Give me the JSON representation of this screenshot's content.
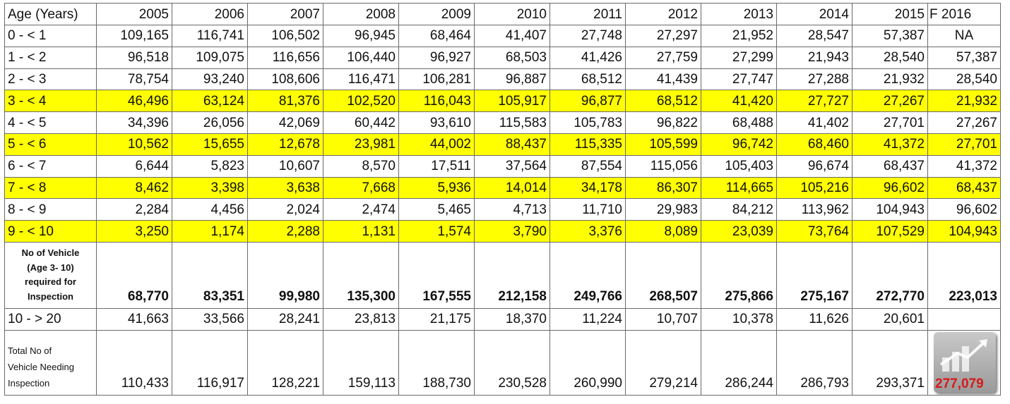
{
  "header": [
    "Age (Years)",
    "2005",
    "2006",
    "2007",
    "2008",
    "2009",
    "2010",
    "2011",
    "2012",
    "2013",
    "2014",
    "2015",
    "F 2016"
  ],
  "age_rows": [
    {
      "label": "0 - < 1",
      "highlight": false,
      "values": [
        "109,165",
        "116,741",
        "106,502",
        "96,945",
        "68,464",
        "41,407",
        "27,748",
        "27,297",
        "21,952",
        "28,547",
        "57,387",
        "NA"
      ]
    },
    {
      "label": "1 - < 2",
      "highlight": false,
      "values": [
        "96,518",
        "109,075",
        "116,656",
        "106,440",
        "96,927",
        "68,503",
        "41,426",
        "27,759",
        "27,299",
        "21,943",
        "28,540",
        "57,387"
      ]
    },
    {
      "label": "2 - < 3",
      "highlight": false,
      "values": [
        "78,754",
        "93,240",
        "108,606",
        "116,471",
        "106,281",
        "96,887",
        "68,512",
        "41,439",
        "27,747",
        "27,288",
        "21,932",
        "28,540"
      ]
    },
    {
      "label": "3 - < 4",
      "highlight": true,
      "values": [
        "46,496",
        "63,124",
        "81,376",
        "102,520",
        "116,043",
        "105,917",
        "96,877",
        "68,512",
        "41,420",
        "27,727",
        "27,267",
        "21,932"
      ]
    },
    {
      "label": "4 - < 5",
      "highlight": false,
      "values": [
        "34,396",
        "26,056",
        "42,069",
        "60,442",
        "93,610",
        "115,583",
        "105,783",
        "96,822",
        "68,488",
        "41,402",
        "27,701",
        "27,267"
      ]
    },
    {
      "label": "5 - < 6",
      "highlight": true,
      "values": [
        "10,562",
        "15,655",
        "12,678",
        "23,981",
        "44,002",
        "88,437",
        "115,335",
        "105,599",
        "96,742",
        "68,460",
        "41,372",
        "27,701"
      ]
    },
    {
      "label": "6 - < 7",
      "highlight": false,
      "values": [
        "6,644",
        "5,823",
        "10,607",
        "8,570",
        "17,511",
        "37,564",
        "87,554",
        "115,056",
        "105,403",
        "96,674",
        "68,437",
        "41,372"
      ]
    },
    {
      "label": "7 - < 8",
      "highlight": true,
      "values": [
        "8,462",
        "3,398",
        "3,638",
        "7,668",
        "5,936",
        "14,014",
        "34,178",
        "86,307",
        "114,665",
        "105,216",
        "96,602",
        "68,437"
      ]
    },
    {
      "label": "8 - < 9",
      "highlight": false,
      "values": [
        "2,284",
        "4,456",
        "2,024",
        "2,474",
        "5,465",
        "4,713",
        "11,710",
        "29,983",
        "84,212",
        "113,962",
        "104,943",
        "96,602"
      ]
    },
    {
      "label": "9 - < 10",
      "highlight": true,
      "values": [
        "3,250",
        "1,174",
        "2,288",
        "1,131",
        "1,574",
        "3,790",
        "3,376",
        "8,089",
        "23,039",
        "73,764",
        "107,529",
        "104,943"
      ]
    }
  ],
  "required_row": {
    "label_lines": [
      "No of Vehicle",
      "(Age 3- 10)",
      "required for",
      "Inspection"
    ],
    "values": [
      "68,770",
      "83,351",
      "99,980",
      "135,300",
      "167,555",
      "212,158",
      "249,766",
      "268,507",
      "275,866",
      "275,167",
      "272,770",
      "223,013"
    ]
  },
  "older_row": {
    "label": "10 - > 20",
    "values": [
      "41,663",
      "33,566",
      "28,241",
      "23,813",
      "21,175",
      "18,370",
      "11,224",
      "10,707",
      "10,378",
      "11,626",
      "20,601",
      ""
    ]
  },
  "total_row": {
    "label_lines": [
      "Total No of",
      "Vehicle Needing",
      "Inspection"
    ],
    "values": [
      "110,433",
      "116,917",
      "128,221",
      "159,113",
      "188,730",
      "230,528",
      "260,990",
      "279,214",
      "286,244",
      "286,793",
      "293,371"
    ],
    "forecast_total": "277,079"
  },
  "colors": {
    "highlight": "#ffff00",
    "forecast_total": "#d61a1a",
    "grid": "#6a6a6a"
  },
  "icons": [
    "growth-chart-logo-icon"
  ]
}
